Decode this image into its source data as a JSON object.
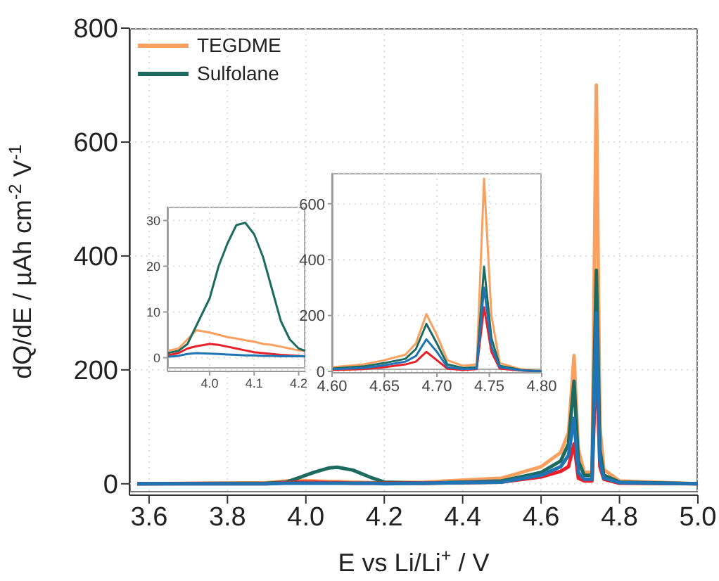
{
  "chart_data": [
    {
      "type": "line",
      "xlabel": "E vs Li/Li$^{+}$ / V",
      "ylabel": "dQ/dE / µAh cm$^{-2}$ V$^{-1}$",
      "xlim": [
        3.55,
        5.0
      ],
      "xticks": [
        3.6,
        3.8,
        {
          "value": 4.0,
          "label": "4.0"
        },
        4.2,
        4.4,
        4.6,
        4.8,
        {
          "value": 5.0,
          "label": "5.0"
        }
      ],
      "ylim": [
        -20,
        800
      ],
      "yticks": [
        0,
        200,
        400,
        600,
        800
      ],
      "grid": true,
      "legend": "top left",
      "x": [
        3.57,
        3.9,
        3.95,
        3.98,
        4.02,
        4.06,
        4.08,
        4.12,
        4.17,
        4.2,
        4.3,
        4.5,
        4.6,
        4.65,
        4.67,
        4.684,
        4.695,
        4.71,
        4.73,
        4.741,
        4.75,
        4.76,
        4.8,
        5.0
      ],
      "series": [
        {
          "name": "TEGDME",
          "color": "#f9a05e",
          "values": [
            0,
            2,
            5,
            6,
            5,
            4,
            4,
            3,
            2,
            2,
            3,
            10,
            30,
            55,
            90,
            225,
            60,
            20,
            20,
            700,
            100,
            25,
            5,
            0
          ]
        },
        {
          "name": "Sulfolane",
          "color": "#1d6b5f",
          "values": [
            0,
            1,
            3,
            10,
            20,
            28,
            29,
            24,
            10,
            3,
            1,
            5,
            20,
            40,
            70,
            180,
            40,
            15,
            15,
            375,
            60,
            15,
            3,
            0
          ]
        },
        {
          "color": "#e8202a",
          "values": [
            0,
            0,
            2,
            3,
            3,
            2,
            2,
            1,
            1,
            1,
            1,
            3,
            12,
            22,
            30,
            70,
            10,
            5,
            5,
            230,
            30,
            8,
            1,
            0
          ]
        },
        {
          "color": "#1f74b4",
          "values": [
            0,
            0,
            1,
            1,
            1,
            1,
            1,
            1,
            1,
            0,
            1,
            3,
            15,
            30,
            50,
            115,
            20,
            8,
            8,
            300,
            40,
            10,
            2,
            0
          ]
        }
      ]
    },
    {
      "type": "line",
      "xlim": [
        3.905,
        4.215
      ],
      "xticks": [
        {
          "value": 4.0,
          "label": "4.0"
        },
        4.1,
        4.2
      ],
      "ylim": [
        -3,
        33
      ],
      "yticks": [
        0,
        10,
        20,
        30
      ],
      "grid": true,
      "x": [
        3.905,
        3.93,
        3.95,
        3.97,
        4.0,
        4.02,
        4.04,
        4.06,
        4.08,
        4.1,
        4.12,
        4.14,
        4.16,
        4.18,
        4.2,
        4.215
      ],
      "series": [
        {
          "color": "#f9a05e",
          "values": [
            1.5,
            2,
            4,
            6,
            5.5,
            5,
            4.5,
            4.2,
            3.8,
            3.5,
            3,
            2.8,
            2.4,
            2,
            1.6,
            1.5
          ]
        },
        {
          "color": "#1d6b5f",
          "values": [
            1,
            1.5,
            3,
            7,
            13,
            20,
            25,
            29,
            29.5,
            27,
            22,
            15,
            8,
            4,
            2,
            1.5
          ]
        },
        {
          "color": "#e8202a",
          "values": [
            0.5,
            1,
            2,
            2.5,
            3,
            2.8,
            2.4,
            2,
            1.6,
            1.2,
            1,
            0.8,
            0.6,
            0.5,
            0.4,
            0.3
          ]
        },
        {
          "color": "#1f74b4",
          "values": [
            0.2,
            0.4,
            0.8,
            1,
            0.9,
            0.8,
            0.7,
            0.6,
            0.5,
            0.5,
            0.4,
            0.4,
            0.3,
            0.3,
            0.3,
            0.3
          ]
        }
      ]
    },
    {
      "type": "line",
      "xlim": [
        4.6,
        4.8
      ],
      "xticks": [
        {
          "value": 4.6,
          "label": "4.60"
        },
        4.65,
        {
          "value": 4.7,
          "label": "4.70"
        },
        4.75,
        {
          "value": 4.8,
          "label": "4.80"
        }
      ],
      "ylim": [
        -5,
        710
      ],
      "yticks": [
        0,
        200,
        400,
        600
      ],
      "grid": true,
      "x": [
        4.6,
        4.63,
        4.65,
        4.67,
        4.68,
        4.69,
        4.7,
        4.71,
        4.725,
        4.738,
        4.745,
        4.752,
        4.76,
        4.78,
        4.8
      ],
      "series": [
        {
          "color": "#f9a05e",
          "values": [
            15,
            25,
            40,
            60,
            100,
            205,
            130,
            40,
            20,
            25,
            690,
            200,
            30,
            8,
            0
          ]
        },
        {
          "color": "#1d6b5f",
          "values": [
            10,
            18,
            30,
            45,
            80,
            170,
            100,
            25,
            12,
            15,
            375,
            120,
            20,
            5,
            0
          ]
        },
        {
          "color": "#e8202a",
          "values": [
            5,
            8,
            15,
            25,
            35,
            70,
            40,
            10,
            5,
            8,
            230,
            70,
            10,
            3,
            0
          ]
        },
        {
          "color": "#1f74b4",
          "values": [
            8,
            12,
            22,
            35,
            55,
            115,
            70,
            15,
            8,
            10,
            300,
            90,
            15,
            4,
            0
          ]
        }
      ]
    }
  ]
}
